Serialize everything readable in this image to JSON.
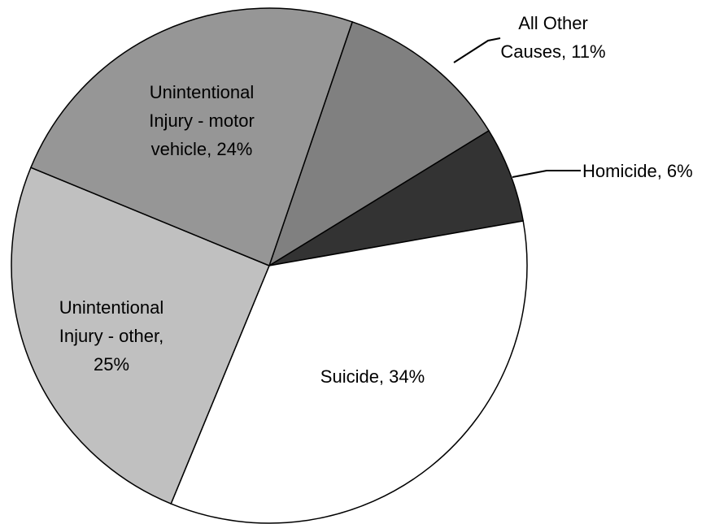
{
  "chart_data": {
    "type": "pie",
    "categories": [
      "All Other Causes",
      "Homicide",
      "Suicide",
      "Unintentional Injury - other",
      "Unintentional Injury - motor vehicle"
    ],
    "values": [
      11,
      6,
      34,
      25,
      24
    ],
    "labels": [
      [
        "All Other",
        "Causes, 11%"
      ],
      [
        "Homicide, 6%"
      ],
      [
        "Suicide, 34%"
      ],
      [
        "Unintentional",
        "Injury - other,",
        "25%"
      ],
      [
        "Unintentional",
        "Injury - motor",
        "vehicle, 24%"
      ]
    ],
    "colors": [
      "#808080",
      "#333333",
      "#ffffff",
      "#c0c0c0",
      "#969696"
    ]
  }
}
